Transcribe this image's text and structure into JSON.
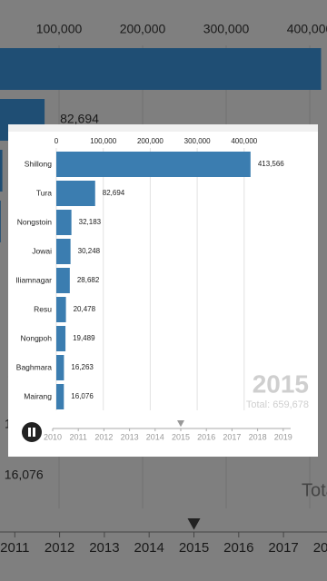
{
  "chart_data": {
    "type": "bar",
    "orientation": "horizontal",
    "categories": [
      "Shillong",
      "Tura",
      "Nongstoin",
      "Jowai",
      "Iliamnagar",
      "Resu",
      "Nongpoh",
      "Baghmara",
      "Mairang"
    ],
    "values": [
      413566,
      82694,
      32183,
      30248,
      28682,
      20478,
      19489,
      16263,
      16076
    ],
    "value_labels": [
      "413,566",
      "82,694",
      "32,183",
      "30,248",
      "28,682",
      "20,478",
      "19,489",
      "16,263",
      "16,076"
    ],
    "color": "#3b7db0",
    "xlim": [
      0,
      420000
    ],
    "xticks": [
      0,
      {
        "value": 100000,
        "label": "100,000"
      },
      {
        "value": 200000,
        "label": "200,000"
      },
      {
        "value": 300000,
        "label": "300,000"
      },
      {
        "value": 400000,
        "label": "400,000"
      }
    ],
    "grid": true,
    "total": "Total: 659,678",
    "timeline": {
      "years": [
        2010,
        2011,
        2012,
        2013,
        2014,
        2015,
        2016,
        2017,
        2018,
        2019
      ],
      "current": 2015
    }
  }
}
